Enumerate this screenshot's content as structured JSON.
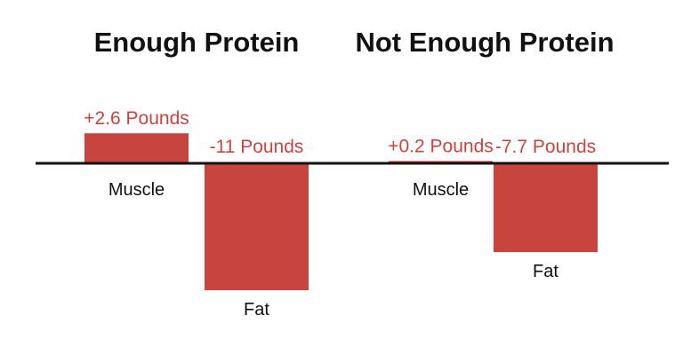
{
  "chart_data": {
    "type": "bar",
    "groups": [
      {
        "title": "Enough Protein",
        "bars": [
          {
            "category": "Muscle",
            "value": 2.6,
            "label": "+2.6 Pounds"
          },
          {
            "category": "Fat",
            "value": -11,
            "label": "-11 Pounds"
          }
        ]
      },
      {
        "title": "Not Enough Protein",
        "bars": [
          {
            "category": "Muscle",
            "value": 0.2,
            "label": "+0.2 Pounds"
          },
          {
            "category": "Fat",
            "value": -7.7,
            "label": "-7.7 Pounds"
          }
        ]
      }
    ],
    "ylim": [
      -11,
      2.6
    ],
    "grid": false,
    "baseline": 0
  },
  "colors": {
    "bar": "#c8453f",
    "axis": "#111111",
    "title_text": "#111111",
    "value_text": "#c8453f",
    "category_text": "#111111",
    "background": "#ffffff"
  }
}
